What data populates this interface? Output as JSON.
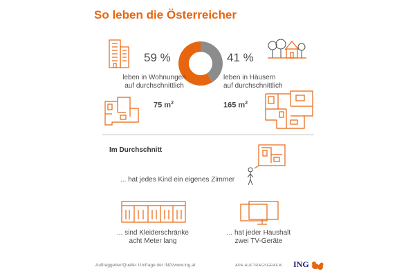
{
  "title": "So leben die Österreicher",
  "apartments": {
    "percent_label": "59 %",
    "description": [
      "leben in Wohnungen",
      "auf durchschnittlich"
    ],
    "area_value": "75 m",
    "area_exp": "2"
  },
  "houses": {
    "percent_label": "41 %",
    "description": [
      "leben in Häusern",
      "auf durchschnittlich"
    ],
    "area_value": "165 m",
    "area_exp": "2"
  },
  "chart_data": {
    "type": "pie",
    "style": "donut",
    "title": "So leben die Österreicher",
    "categories": [
      "leben in Wohnungen",
      "leben in Häusern"
    ],
    "values": [
      59,
      41
    ],
    "unit": "%",
    "colors": [
      "#e8650f",
      "#8c8c8c"
    ]
  },
  "average": {
    "heading": "Im Durchschnitt",
    "facts": {
      "child_room": "... hat jedes Kind ein eigenes Zimmer",
      "wardrobes": [
        "... sind Kleiderschränke",
        "acht Meter lang"
      ],
      "tv": [
        "... hat jeder Haushalt",
        "zwei TV-Geräte"
      ]
    }
  },
  "footer": {
    "source": "Auftraggeber/Quelle: Umfrage der ING/www.ing.at",
    "credit": "APA-AUFTRAGSGRAFIK",
    "logo": "ING"
  },
  "colors": {
    "accent": "#e8650f",
    "secondary": "#8c8c8c",
    "text": "#4a4a4a",
    "brand": "#1a1a6e"
  },
  "icons": [
    "apartment-building-icon",
    "house-icon",
    "apartment-floorplan-icon",
    "house-floorplan-icon",
    "child-room-icon",
    "wardrobe-icon",
    "tv-icon",
    "ing-lion-icon"
  ]
}
